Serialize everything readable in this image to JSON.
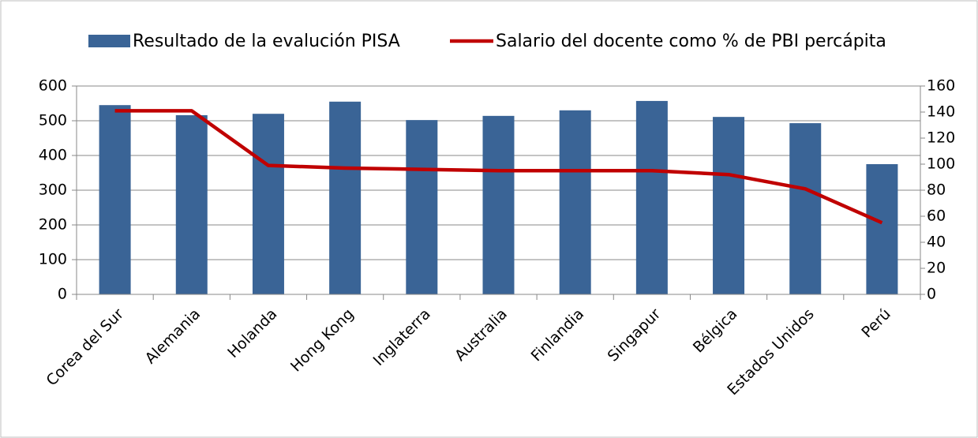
{
  "chart_data": {
    "type": "bar_line",
    "categories": [
      "Corea del Sur",
      "Alemania",
      "Holanda",
      "Hong Kong",
      "Inglaterra",
      "Australia",
      "Finlandia",
      "Singapur",
      "Bélgica",
      "Estados Unidos",
      "Perú"
    ],
    "series": [
      {
        "name": "Resultado de la evalución PISA",
        "color": "#3a6496",
        "type": "bar",
        "values": [
          545,
          516,
          520,
          555,
          502,
          514,
          530,
          557,
          511,
          493,
          375
        ]
      },
      {
        "name": "Salario del docente como % de PBI percápita",
        "color": "#c00000",
        "type": "line",
        "axis": "y2",
        "values": [
          141,
          141,
          99,
          97,
          96,
          95,
          95,
          95,
          92,
          81,
          55
        ]
      }
    ],
    "ylim": [
      0,
      600
    ],
    "yticks": [
      0,
      100,
      200,
      300,
      400,
      500,
      600
    ],
    "y2lim": [
      0,
      160
    ],
    "y2ticks": [
      0,
      20,
      40,
      60,
      80,
      100,
      120,
      140,
      160
    ],
    "grid": true,
    "legend": "top"
  }
}
